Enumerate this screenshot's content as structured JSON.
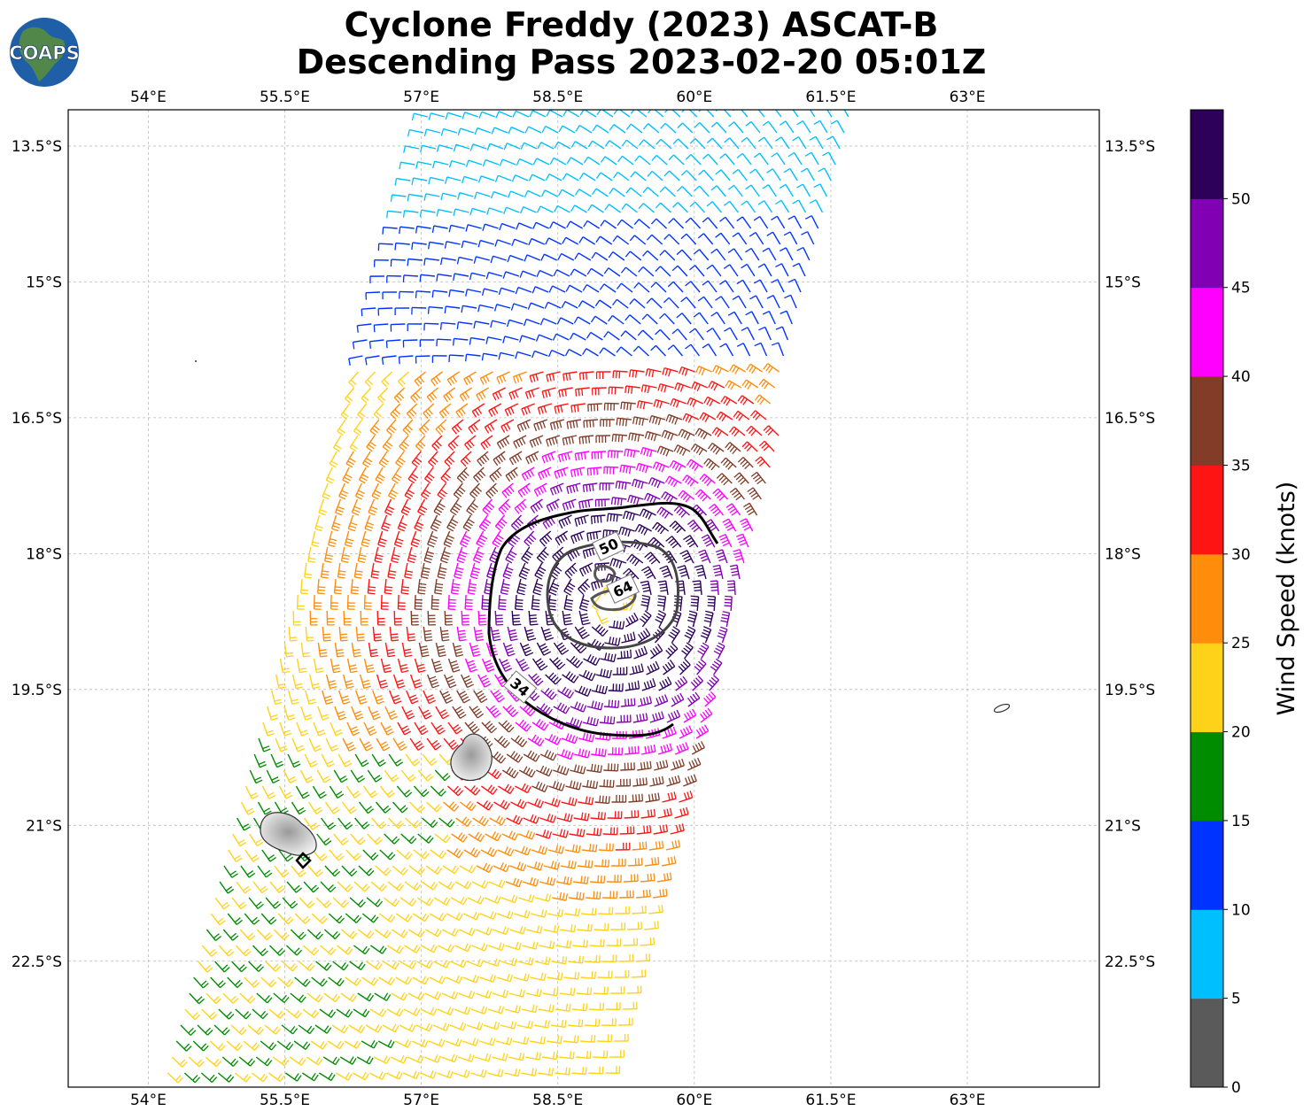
{
  "title": {
    "line1": "Cyclone Freddy (2023) ASCAT-B",
    "line2": "Descending Pass 2023-02-20 05:01Z"
  },
  "logo": {
    "text": "COAPS",
    "icon": "globe-icon"
  },
  "map": {
    "lon_ticks": [
      {
        "value": 54.0,
        "label": "54°E"
      },
      {
        "value": 55.5,
        "label": "55.5°E"
      },
      {
        "value": 57.0,
        "label": "57°E"
      },
      {
        "value": 58.5,
        "label": "58.5°E"
      },
      {
        "value": 60.0,
        "label": "60°E"
      },
      {
        "value": 61.5,
        "label": "61.5°E"
      },
      {
        "value": 63.0,
        "label": "63°E"
      }
    ],
    "lat_ticks": [
      {
        "value": -13.5,
        "label": "13.5°S"
      },
      {
        "value": -15.0,
        "label": "15°S"
      },
      {
        "value": -16.5,
        "label": "16.5°S"
      },
      {
        "value": -18.0,
        "label": "18°S"
      },
      {
        "value": -19.5,
        "label": "19.5°S"
      },
      {
        "value": -21.0,
        "label": "21°S"
      },
      {
        "value": -22.5,
        "label": "22.5°S"
      }
    ],
    "lon_range": [
      53.12,
      64.45
    ],
    "lat_range": [
      -23.89,
      -13.1
    ],
    "storm_center": {
      "lon": 59.1,
      "lat": -18.55
    },
    "contours": [
      {
        "label": "34",
        "color": "#000000"
      },
      {
        "label": "50",
        "color": "#444444"
      },
      {
        "label": "64",
        "color": "#555555"
      }
    ],
    "landmasses": [
      "Réunion",
      "Mauritius",
      "Rodrigues"
    ]
  },
  "colorbar": {
    "label": "Wind Speed (knots)",
    "ticks": [
      "0",
      "5",
      "10",
      "15",
      "20",
      "25",
      "30",
      "35",
      "40",
      "45",
      "50"
    ],
    "bins": [
      {
        "min": 0,
        "max": 5,
        "color": "#5a5a5a"
      },
      {
        "min": 5,
        "max": 10,
        "color": "#00bfff"
      },
      {
        "min": 10,
        "max": 15,
        "color": "#0033ff"
      },
      {
        "min": 15,
        "max": 20,
        "color": "#008c00"
      },
      {
        "min": 20,
        "max": 25,
        "color": "#ffd21a"
      },
      {
        "min": 25,
        "max": 30,
        "color": "#ff8c0a"
      },
      {
        "min": 30,
        "max": 35,
        "color": "#ff1414"
      },
      {
        "min": 35,
        "max": 40,
        "color": "#823c28"
      },
      {
        "min": 40,
        "max": 45,
        "color": "#ff00ff"
      },
      {
        "min": 45,
        "max": 50,
        "color": "#8200b4"
      },
      {
        "min": 50,
        "max": 55,
        "color": "#2d005a"
      }
    ]
  }
}
